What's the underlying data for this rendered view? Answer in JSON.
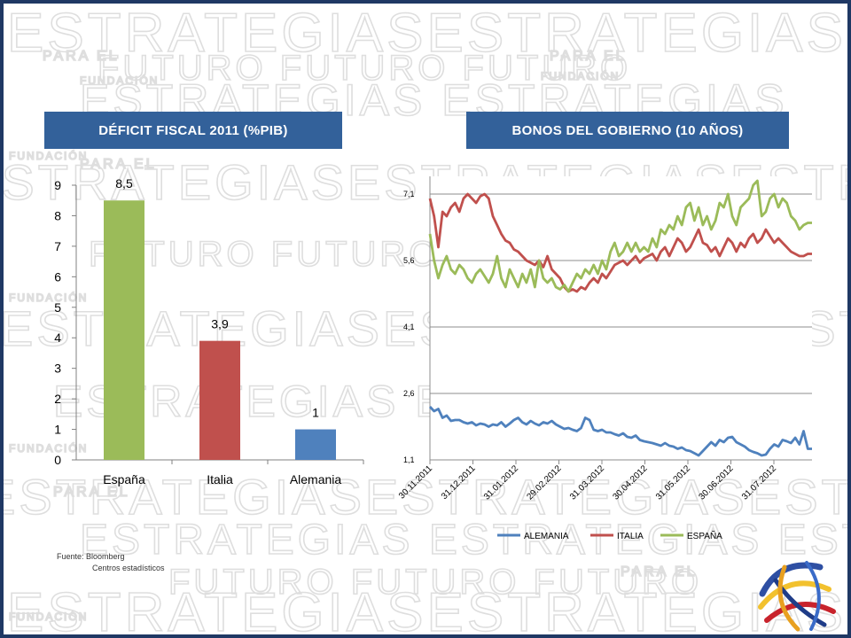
{
  "watermark": {
    "word": "ESTRATEGIAS",
    "sub": "PARA EL",
    "future": "FUTURO",
    "foundation": "FUNDACIÓN"
  },
  "titles": {
    "left": "DÉFICIT FISCAL 2011 (%PIB)",
    "right": "BONOS DEL GOBIERNO (10 AÑOS)"
  },
  "source": {
    "line1": "Fuente: Bloomberg",
    "line2": "Centros estadísticos"
  },
  "chart_data": [
    {
      "type": "bar",
      "title": "DÉFICIT FISCAL 2011 (%PIB)",
      "categories": [
        "España",
        "Italia",
        "Alemania"
      ],
      "values": [
        8.5,
        3.9,
        1
      ],
      "value_labels": [
        "8,5",
        "3,9",
        "1"
      ],
      "colors": [
        "#9bbb59",
        "#c0504d",
        "#4f81bd"
      ],
      "ylim": [
        0,
        9
      ],
      "yticks": [
        "0",
        "1",
        "2",
        "3",
        "4",
        "5",
        "6",
        "7",
        "8",
        "9"
      ],
      "grid": false
    },
    {
      "type": "line",
      "title": "BONOS DEL GOBIERNO (10 AÑOS)",
      "ylim": [
        1.1,
        7.1
      ],
      "yticks": [
        "1,1",
        "2,6",
        "4,1",
        "5,6",
        "7,1"
      ],
      "ytick_values": [
        1.1,
        2.6,
        4.1,
        5.6,
        7.1
      ],
      "xticks": [
        "30.11.2011",
        "31.12.2011",
        "31.01.2012",
        "29.02.2012",
        "31.03.2012",
        "30.04.2012",
        "31.05.2012",
        "30.06.2012",
        "31.07.2012"
      ],
      "grid": true,
      "legend_position": "bottom",
      "series": [
        {
          "name": "ALEMANIA",
          "color": "#4f81bd",
          "values": [
            2.3,
            2.2,
            2.25,
            2.05,
            2.1,
            1.98,
            2.0,
            2.0,
            1.95,
            1.92,
            1.95,
            1.88,
            1.92,
            1.9,
            1.85,
            1.9,
            1.88,
            1.95,
            1.85,
            1.92,
            2.0,
            2.05,
            1.95,
            1.9,
            1.98,
            1.92,
            1.88,
            1.95,
            1.92,
            1.98,
            1.9,
            1.85,
            1.8,
            1.82,
            1.78,
            1.75,
            1.82,
            2.05,
            2.0,
            1.78,
            1.75,
            1.78,
            1.72,
            1.72,
            1.68,
            1.65,
            1.7,
            1.62,
            1.6,
            1.65,
            1.55,
            1.52,
            1.5,
            1.48,
            1.45,
            1.42,
            1.48,
            1.42,
            1.4,
            1.35,
            1.38,
            1.32,
            1.3,
            1.25,
            1.2,
            1.3,
            1.4,
            1.5,
            1.42,
            1.55,
            1.5,
            1.6,
            1.62,
            1.5,
            1.45,
            1.4,
            1.32,
            1.28,
            1.25,
            1.2,
            1.22,
            1.35,
            1.45,
            1.4,
            1.55,
            1.52,
            1.48,
            1.6,
            1.45,
            1.75,
            1.35,
            1.35
          ]
        },
        {
          "name": "ITALIA",
          "color": "#c0504d",
          "values": [
            7.0,
            6.6,
            5.9,
            6.7,
            6.6,
            6.8,
            6.9,
            6.7,
            7.0,
            7.1,
            7.0,
            6.9,
            7.05,
            7.1,
            7.0,
            6.6,
            6.4,
            6.2,
            6.05,
            6.0,
            5.85,
            5.8,
            5.7,
            5.6,
            5.55,
            5.5,
            5.6,
            5.45,
            5.7,
            5.4,
            5.3,
            5.2,
            5.0,
            4.9,
            4.95,
            4.9,
            5.0,
            4.95,
            5.1,
            5.2,
            5.1,
            5.3,
            5.2,
            5.35,
            5.5,
            5.55,
            5.6,
            5.5,
            5.6,
            5.7,
            5.55,
            5.65,
            5.7,
            5.75,
            5.6,
            5.8,
            5.9,
            5.7,
            5.9,
            6.1,
            6.0,
            5.8,
            5.9,
            6.1,
            6.3,
            6.0,
            5.95,
            5.8,
            5.9,
            5.7,
            5.9,
            6.1,
            6.0,
            5.8,
            6.0,
            5.9,
            6.1,
            6.2,
            6.0,
            6.1,
            6.3,
            6.15,
            6.0,
            6.1,
            6.0,
            5.9,
            5.8,
            5.75,
            5.7,
            5.7,
            5.75,
            5.75
          ]
        },
        {
          "name": "ESPAÑA",
          "color": "#9bbb59",
          "values": [
            6.2,
            5.6,
            5.2,
            5.5,
            5.7,
            5.4,
            5.3,
            5.5,
            5.4,
            5.2,
            5.1,
            5.3,
            5.4,
            5.25,
            5.1,
            5.3,
            5.7,
            5.2,
            5.0,
            5.4,
            5.2,
            5.0,
            5.3,
            5.1,
            5.4,
            5.0,
            5.6,
            5.2,
            5.1,
            5.2,
            5.0,
            4.95,
            5.05,
            4.9,
            5.1,
            5.3,
            5.2,
            5.4,
            5.3,
            5.5,
            5.3,
            5.6,
            5.4,
            5.8,
            6.0,
            5.7,
            5.8,
            6.0,
            5.8,
            6.0,
            5.8,
            5.9,
            5.8,
            6.1,
            5.9,
            6.3,
            6.2,
            6.4,
            6.3,
            6.6,
            6.4,
            6.8,
            6.9,
            6.5,
            6.8,
            6.4,
            6.6,
            6.3,
            6.5,
            6.9,
            6.8,
            7.1,
            6.6,
            6.4,
            6.8,
            6.9,
            7.0,
            7.3,
            7.4,
            6.6,
            6.7,
            7.0,
            7.1,
            6.8,
            7.0,
            6.9,
            6.6,
            6.5,
            6.3,
            6.4,
            6.45,
            6.45
          ]
        }
      ]
    }
  ]
}
